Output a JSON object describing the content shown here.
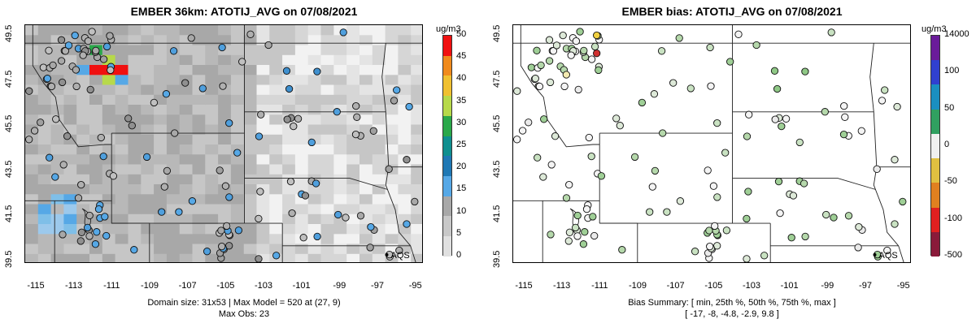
{
  "left": {
    "title": "EMBER 36km: ATOTIJ_AVG on 07/08/2021",
    "units": "ug/m3",
    "legend_ticks": [
      "0",
      "5",
      "10",
      "15",
      "20",
      "25",
      "30",
      "35",
      "40",
      "45",
      "50"
    ],
    "footer_lines": [
      "Domain size: 31x53 | Max Model = 520 at (27, 9)",
      "Max Obs: 23"
    ],
    "station_label": "AQS"
  },
  "right": {
    "title": "EMBER bias: ATOTIJ_AVG on 07/08/2021",
    "units": "ug/m3",
    "legend_ticks": [
      "14000",
      "100",
      "50",
      "0",
      "-50",
      "-100",
      "-500"
    ],
    "footer_lines": [
      "Bias Summary: [ min, 25th %, 50th %, 75th %, max ]",
      "[ -17,   -8,   -4.8,   -2.9,   9.8 ]"
    ],
    "station_label": "AQS"
  },
  "axes": {
    "x_ticks": [
      "-115",
      "-113",
      "-111",
      "-109",
      "-107",
      "-105",
      "-103",
      "-101",
      "-99",
      "-97",
      "-95"
    ],
    "y_ticks": [
      "39.5",
      "41.5",
      "43.5",
      "45.5",
      "47.5",
      "49.5"
    ]
  },
  "colors": {
    "concentration_scale": [
      "#e0e0e0",
      "#c8c8c8",
      "#a8a8a8",
      "#56a8e6",
      "#1f78b4",
      "#0f8f8f",
      "#2aa84a",
      "#b7d94a",
      "#f0c030",
      "#f08a1c",
      "#f01010"
    ],
    "bias_scale": [
      "#6a1b9a",
      "#3040d0",
      "#1a8fc0",
      "#30a060",
      "#f0f0f0",
      "#e0c040",
      "#e08020",
      "#e02020",
      "#8a1a3a"
    ]
  }
}
